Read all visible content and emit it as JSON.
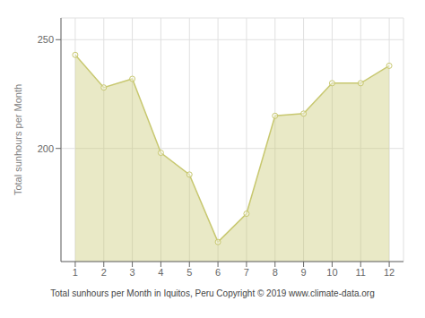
{
  "chart_data": {
    "type": "area",
    "xlabel": "Total sunhours per Month in Iquitos, Peru Copyright © 2019 www.climate-data.org",
    "ylabel": "Total sunhours per Month",
    "x": [
      1,
      2,
      3,
      4,
      5,
      6,
      7,
      8,
      9,
      10,
      11,
      12
    ],
    "values": [
      243,
      228,
      232,
      198,
      188,
      157,
      170,
      215,
      216,
      230,
      230,
      238
    ],
    "color": "#c8c870",
    "marker": "circle",
    "xlim": [
      0.5,
      12.5
    ],
    "xticks": [
      1,
      2,
      3,
      4,
      5,
      6,
      7,
      8,
      9,
      10,
      11,
      12
    ],
    "ylim": [
      148,
      260
    ],
    "yticks": [
      200,
      250
    ],
    "grid": true
  }
}
